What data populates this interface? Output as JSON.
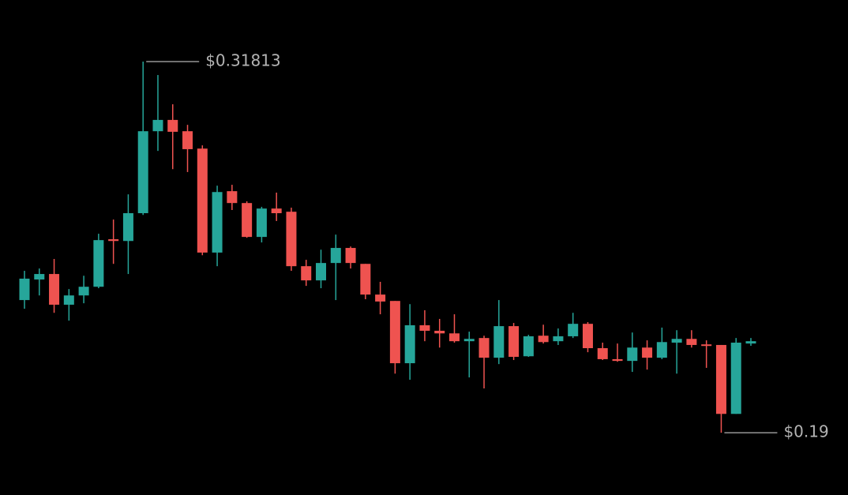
{
  "chart_data": {
    "type": "candlestick",
    "up_color": "#26a69a",
    "down_color": "#ef5350",
    "ylim": [
      0.1685,
      0.3394
    ],
    "open": [
      0.2358,
      0.2429,
      0.2448,
      0.2342,
      0.2374,
      0.2404,
      0.2568,
      0.2562,
      0.2658,
      0.2941,
      0.298,
      0.2941,
      0.2881,
      0.2522,
      0.2734,
      0.2693,
      0.2576,
      0.2674,
      0.2663,
      0.2475,
      0.2426,
      0.2486,
      0.2538,
      0.2483,
      0.2377,
      0.2355,
      0.214,
      0.2271,
      0.2252,
      0.2243,
      0.2216,
      0.2227,
      0.2159,
      0.2268,
      0.2164,
      0.2235,
      0.2216,
      0.2233,
      0.2276,
      0.2192,
      0.2154,
      0.2148,
      0.2194,
      0.2159,
      0.2211,
      0.2224,
      0.2205,
      0.2203,
      0.1965,
      0.2208
    ],
    "high": [
      0.2459,
      0.2467,
      0.25,
      0.2396,
      0.2442,
      0.2587,
      0.2636,
      0.2723,
      0.31813,
      0.3135,
      0.3034,
      0.2963,
      0.2892,
      0.2753,
      0.2756,
      0.2699,
      0.268,
      0.2729,
      0.2677,
      0.2497,
      0.2532,
      0.2584,
      0.2543,
      0.2483,
      0.2421,
      0.2355,
      0.2344,
      0.2323,
      0.2293,
      0.2309,
      0.2249,
      0.2235,
      0.2358,
      0.2279,
      0.2238,
      0.2273,
      0.226,
      0.2314,
      0.2282,
      0.2211,
      0.2208,
      0.2246,
      0.2219,
      0.2263,
      0.2254,
      0.2254,
      0.2219,
      0.2203,
      0.2227,
      0.2227
    ],
    "low": [
      0.2328,
      0.2374,
      0.2314,
      0.2287,
      0.2347,
      0.2399,
      0.2483,
      0.2448,
      0.2652,
      0.2873,
      0.281,
      0.28,
      0.2513,
      0.2475,
      0.2669,
      0.2573,
      0.2557,
      0.2631,
      0.2459,
      0.2407,
      0.2399,
      0.2358,
      0.2467,
      0.2361,
      0.2309,
      0.2104,
      0.2083,
      0.2216,
      0.2194,
      0.2211,
      0.2091,
      0.2053,
      0.2137,
      0.2151,
      0.2162,
      0.2208,
      0.2203,
      0.2227,
      0.2178,
      0.2151,
      0.2145,
      0.211,
      0.2118,
      0.2154,
      0.2104,
      0.2194,
      0.2124,
      0.19,
      0.1965,
      0.22
    ],
    "close": [
      0.2432,
      0.2448,
      0.2342,
      0.2374,
      0.2404,
      0.2565,
      0.2562,
      0.2658,
      0.2941,
      0.298,
      0.2939,
      0.2879,
      0.2522,
      0.2731,
      0.2693,
      0.2576,
      0.2674,
      0.2658,
      0.2475,
      0.2426,
      0.2486,
      0.2538,
      0.2486,
      0.2377,
      0.2353,
      0.214,
      0.2271,
      0.2252,
      0.2243,
      0.2216,
      0.2224,
      0.2159,
      0.2268,
      0.2162,
      0.2233,
      0.2213,
      0.2233,
      0.2276,
      0.2192,
      0.2154,
      0.2148,
      0.2194,
      0.2159,
      0.2213,
      0.2224,
      0.2203,
      0.22,
      0.1965,
      0.2211,
      0.2216
    ],
    "annotations": [
      {
        "label": "$0.31813",
        "value": 0.31813
      },
      {
        "label": "$0.19",
        "value": 0.19
      }
    ]
  }
}
